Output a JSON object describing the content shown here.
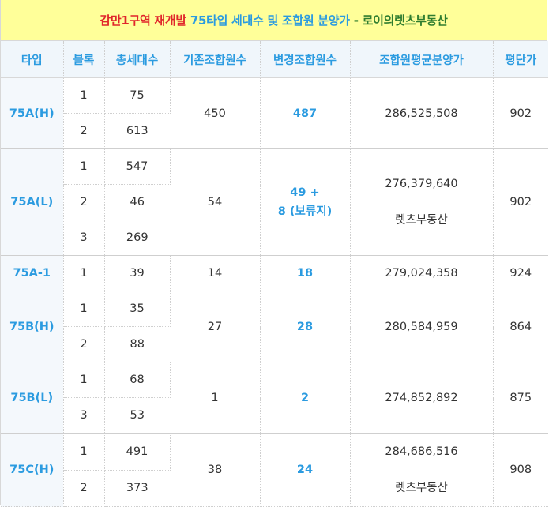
{
  "title": {
    "part1": "감만1구역 재개발",
    "part2": "75타입 세대수 및 조합원 분양가",
    "separator": "-",
    "part3": "로이의렛츠부동산"
  },
  "headers": [
    "타입",
    "블록",
    "총세대수",
    "기존조합원수",
    "변경조합원수",
    "조합원평균분양가",
    "평단가"
  ],
  "groups": [
    {
      "type": "75A(H)",
      "rows": [
        {
          "block": "1",
          "units": "75"
        },
        {
          "block": "2",
          "units": "613"
        }
      ],
      "existing": "450",
      "changed": "487",
      "price": "286,525,508",
      "price_note": "",
      "pyeong": "902"
    },
    {
      "type": "75A(L)",
      "rows": [
        {
          "block": "1",
          "units": "547"
        },
        {
          "block": "2",
          "units": "46"
        },
        {
          "block": "3",
          "units": "269"
        }
      ],
      "existing": "54",
      "changed_line1": "49 +",
      "changed_line2": "8 (보류지)",
      "price": "276,379,640",
      "price_note": "렛츠부동산",
      "pyeong": "902"
    },
    {
      "type": "75A-1",
      "rows": [
        {
          "block": "1",
          "units": "39"
        }
      ],
      "existing": "14",
      "changed": "18",
      "price": "279,024,358",
      "pyeong": "924"
    },
    {
      "type": "75B(H)",
      "rows": [
        {
          "block": "1",
          "units": "35"
        },
        {
          "block": "2",
          "units": "88"
        }
      ],
      "existing": "27",
      "changed": "28",
      "price": "280,584,959",
      "pyeong": "864"
    },
    {
      "type": "75B(L)",
      "rows": [
        {
          "block": "1",
          "units": "68"
        },
        {
          "block": "3",
          "units": "53"
        }
      ],
      "existing": "1",
      "changed": "2",
      "price": "274,852,892",
      "pyeong": "875"
    },
    {
      "type": "75C(H)",
      "rows": [
        {
          "block": "1",
          "units": "491"
        },
        {
          "block": "2",
          "units": "373"
        }
      ],
      "existing": "38",
      "changed": "24",
      "price": "284,686,516",
      "price_note": "렛츠부동산",
      "pyeong": "908"
    }
  ]
}
